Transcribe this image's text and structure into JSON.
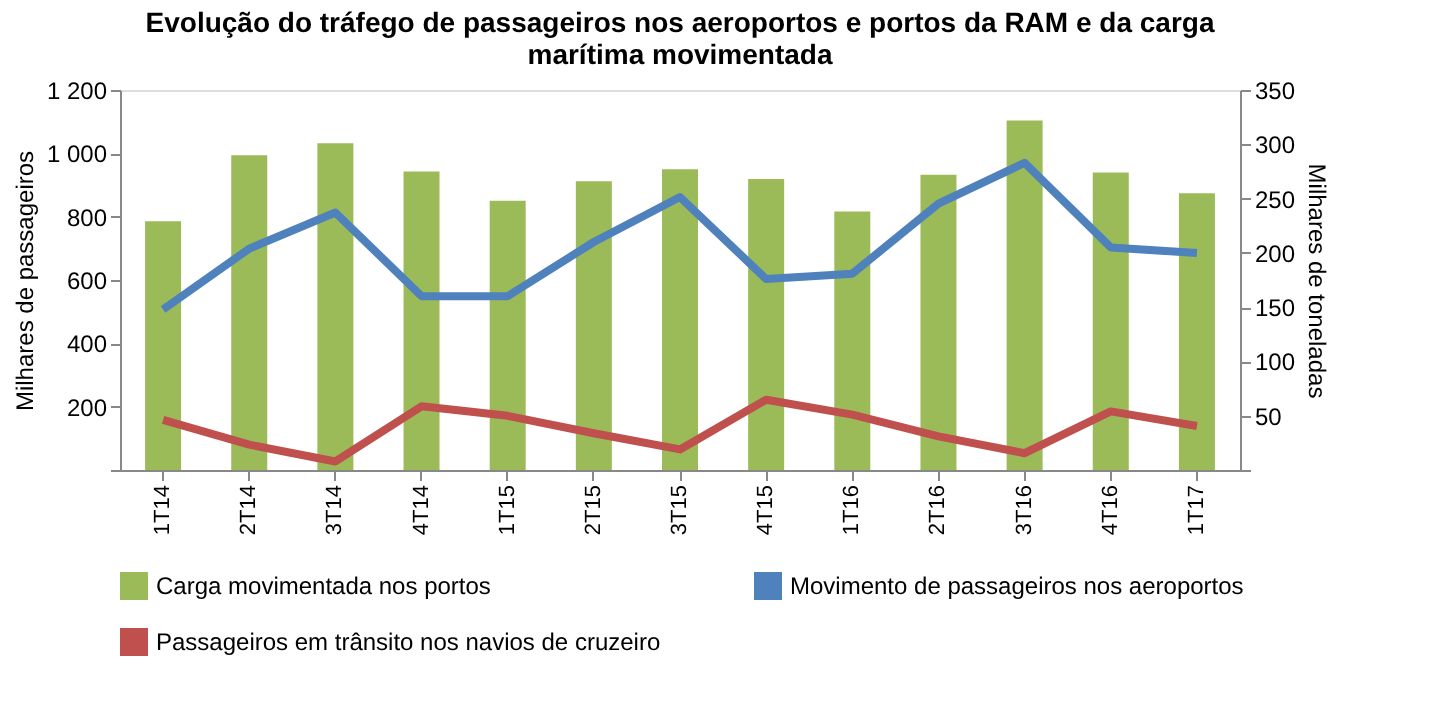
{
  "chart_data": {
    "type": "bar",
    "title": "Evolução do tráfego de passageiros nos aeroportos e portos da RAM e da carga marítima movimentada",
    "categories": [
      "1T14",
      "2T14",
      "3T14",
      "4T14",
      "1T15",
      "2T15",
      "3T15",
      "4T15",
      "1T16",
      "2T16",
      "3T16",
      "4T16",
      "1T17"
    ],
    "series": [
      {
        "name": "Carga movimentada nos portos",
        "axis": "y2",
        "color": "#9bbb59",
        "values": [
          229,
          290,
          301,
          275,
          248,
          266,
          277,
          268,
          238,
          272,
          322,
          274,
          255
        ]
      },
      {
        "name": "Movimento de passageiros nos aeroportos",
        "type": "line",
        "color": "#4f81bd",
        "values": [
          507,
          699,
          813,
          549,
          549,
          720,
          862,
          603,
          620,
          841,
          970,
          703,
          685
        ]
      },
      {
        "name": "Passageiros em trânsito nos navios de cruzeiro",
        "type": "line",
        "color": "#c0504d",
        "values": [
          158,
          80,
          27,
          201,
          171,
          116,
          65,
          222,
          175,
          106,
          53,
          185,
          139
        ]
      }
    ],
    "ylabel": "Milhares de passageiros",
    "y2label": "Milhares de toneladas",
    "ylim": [
      0,
      1200
    ],
    "yticks": [
      {
        "value": 0,
        "label": null
      },
      200,
      400,
      600,
      800,
      {
        "value": 1000,
        "label": "1 000"
      },
      {
        "value": 1200,
        "label": "1 200"
      }
    ],
    "y2lim": [
      0,
      350
    ],
    "y2ticks": [
      {
        "value": 0,
        "label": null
      },
      50,
      100,
      150,
      200,
      250,
      300,
      350
    ],
    "grid": false,
    "legend": "bottom",
    "marker": "none",
    "line_style": "solid"
  }
}
